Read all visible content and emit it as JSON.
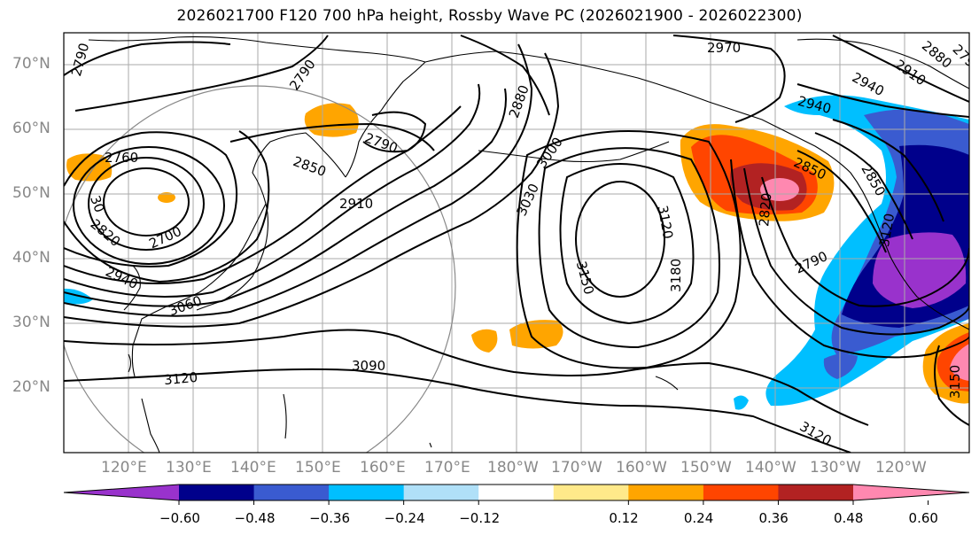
{
  "title": "2026021700 F120 700 hPa height, Rossby Wave PC (2026021900 - 2026022300)",
  "lat_labels": [
    "70°N",
    "60°N",
    "50°N",
    "40°N",
    "30°N",
    "20°N"
  ],
  "lon_labels": [
    "120°E",
    "130°E",
    "140°E",
    "150°E",
    "160°E",
    "170°E",
    "180°W",
    "170°W",
    "160°W",
    "150°W",
    "140°W",
    "130°W",
    "120°W"
  ],
  "contour_labels": [
    "2790",
    "2790",
    "2970",
    "2940",
    "2940",
    "2910",
    "2880",
    "2880",
    "2850",
    "2790",
    "3000",
    "3030",
    "3120",
    "3150",
    "3180",
    "3120",
    "2820",
    "2850",
    "2790",
    "2760",
    "2700",
    "2820",
    "2940",
    "2910",
    "2850",
    "3060",
    "3090",
    "3120",
    "3150",
    "3120",
    "30",
    "2790"
  ],
  "colorbar": {
    "ticks": [
      "−0.60",
      "−0.48",
      "−0.36",
      "−0.24",
      "−0.12",
      "0.12",
      "0.24",
      "0.36",
      "0.48",
      "0.60"
    ],
    "colors": [
      "#9932cc",
      "#00008b",
      "#3a5bd0",
      "#00bfff",
      "#b0e0f8",
      "#ffffff",
      "#ffe98a",
      "#ffa500",
      "#ff4500",
      "#b22222",
      "#ff88b0"
    ]
  }
}
